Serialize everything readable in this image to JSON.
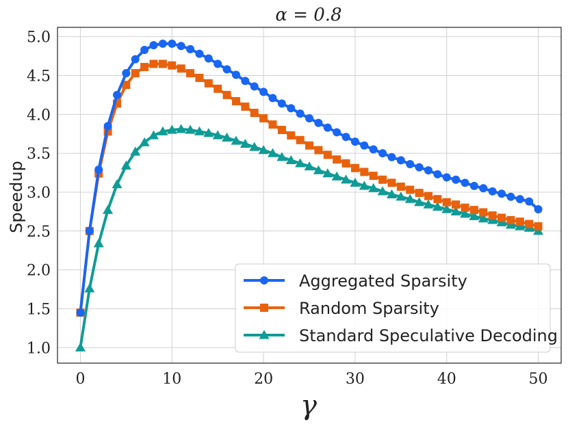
{
  "chart_data": {
    "type": "line",
    "title": "α = 0.8",
    "xlabel": "γ",
    "ylabel": "Speedup",
    "xlim": [
      -2.5,
      52.5
    ],
    "ylim": [
      0.8,
      5.12
    ],
    "xticks": [
      0,
      10,
      20,
      30,
      40,
      50
    ],
    "yticks": [
      1.0,
      1.5,
      2.0,
      2.5,
      3.0,
      3.5,
      4.0,
      4.5,
      5.0
    ],
    "xtick_labels": [
      "0",
      "10",
      "20",
      "30",
      "40",
      "50"
    ],
    "ytick_labels": [
      "1.0",
      "1.5",
      "2.0",
      "2.5",
      "3.0",
      "3.5",
      "4.0",
      "4.5",
      "5.0"
    ],
    "grid": true,
    "legend_position": "lower-right",
    "x": [
      0,
      1,
      2,
      3,
      4,
      5,
      6,
      7,
      8,
      9,
      10,
      11,
      12,
      13,
      14,
      15,
      16,
      17,
      18,
      19,
      20,
      21,
      22,
      23,
      24,
      25,
      26,
      27,
      28,
      29,
      30,
      31,
      32,
      33,
      34,
      35,
      36,
      37,
      38,
      39,
      40,
      41,
      42,
      43,
      44,
      45,
      46,
      47,
      48,
      49,
      50
    ],
    "series": [
      {
        "name": "Aggregated Sparsity",
        "color": "#1866f2",
        "marker": "circle",
        "values": [
          1.45,
          2.5,
          3.29,
          3.85,
          4.25,
          4.53,
          4.71,
          4.83,
          4.89,
          4.91,
          4.91,
          4.88,
          4.84,
          4.78,
          4.72,
          4.65,
          4.58,
          4.51,
          4.43,
          4.36,
          4.29,
          4.21,
          4.14,
          4.08,
          4.01,
          3.95,
          3.89,
          3.83,
          3.77,
          3.71,
          3.65,
          3.6,
          3.55,
          3.5,
          3.45,
          3.41,
          3.36,
          3.32,
          3.28,
          3.23,
          3.19,
          3.16,
          3.12,
          3.08,
          3.05,
          3.01,
          2.98,
          2.94,
          2.91,
          2.88,
          2.78
        ]
      },
      {
        "name": "Random Sparsity",
        "color": "#e8620e",
        "marker": "square",
        "values": [
          1.45,
          2.5,
          3.24,
          3.78,
          4.14,
          4.38,
          4.53,
          4.61,
          4.65,
          4.65,
          4.63,
          4.59,
          4.53,
          4.47,
          4.4,
          4.33,
          4.25,
          4.17,
          4.1,
          4.02,
          3.95,
          3.87,
          3.8,
          3.73,
          3.67,
          3.6,
          3.54,
          3.48,
          3.42,
          3.37,
          3.31,
          3.26,
          3.21,
          3.16,
          3.12,
          3.07,
          3.03,
          2.99,
          2.95,
          2.91,
          2.87,
          2.84,
          2.8,
          2.77,
          2.74,
          2.7,
          2.67,
          2.64,
          2.62,
          2.59,
          2.56
        ]
      },
      {
        "name": "Standard Speculative Decoding",
        "color": "#109b96",
        "marker": "triangle",
        "values": [
          1.0,
          1.76,
          2.34,
          2.77,
          3.1,
          3.34,
          3.52,
          3.64,
          3.73,
          3.78,
          3.8,
          3.81,
          3.8,
          3.78,
          3.76,
          3.73,
          3.7,
          3.66,
          3.62,
          3.58,
          3.54,
          3.5,
          3.45,
          3.41,
          3.37,
          3.33,
          3.28,
          3.24,
          3.2,
          3.16,
          3.12,
          3.08,
          3.05,
          3.01,
          2.97,
          2.94,
          2.91,
          2.87,
          2.84,
          2.81,
          2.78,
          2.75,
          2.72,
          2.69,
          2.66,
          2.64,
          2.61,
          2.58,
          2.56,
          2.54,
          2.5
        ]
      }
    ]
  }
}
